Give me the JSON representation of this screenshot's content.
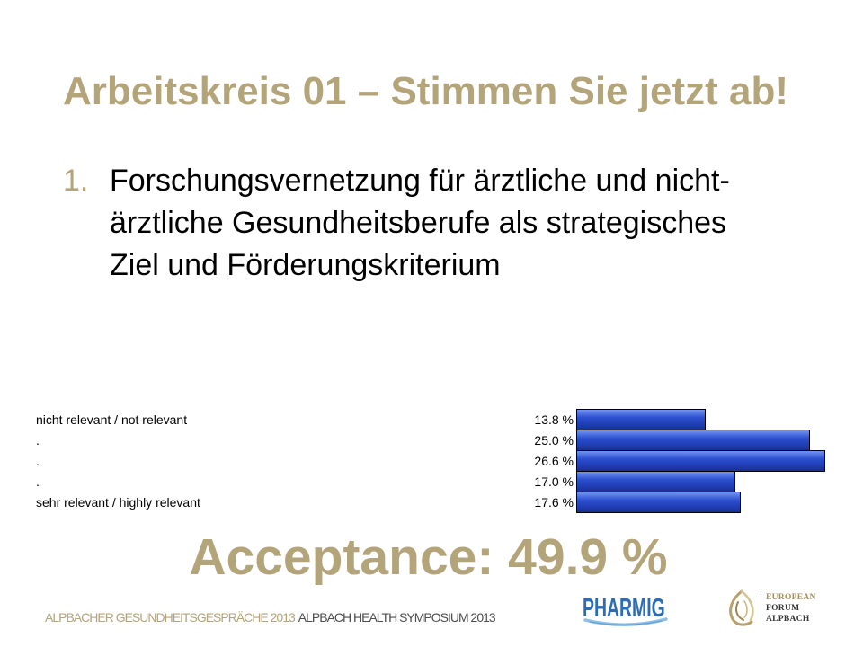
{
  "slide": {
    "title": "Arbeitskreis 01 – Stimmen Sie jetzt ab!",
    "question_number": "1.",
    "question_lines": [
      "Forschungsvernetzung für ärztliche und nicht-",
      "ärztliche Gesundheitsberufe als strategisches",
      "Ziel und Förderungskriterium"
    ],
    "acceptance": "Acceptance: 49.9 %"
  },
  "chart_data": {
    "type": "bar",
    "orientation": "horizontal",
    "categories": [
      "nicht relevant / not relevant",
      ".",
      ".",
      ".",
      "sehr relevant / highly relevant"
    ],
    "values": [
      13.8,
      25.0,
      26.6,
      17.0,
      17.6
    ],
    "value_labels": [
      "13.8 %",
      "25.0 %",
      "26.6 %",
      "17.0 %",
      "17.6 %"
    ],
    "grid": false,
    "legend": "none"
  },
  "footer": {
    "event_de": "ALPBACHER GESUNDHEITSGESPRÄCHE 2013",
    "event_en": "ALPBACH HEALTH SYMPOSIUM 2013"
  },
  "logos": {
    "pharmig": {
      "text": "PHARMIG",
      "icon": "pharmig-swoosh-icon"
    },
    "forum": {
      "lines": [
        "EUROPEAN",
        "FORUM",
        "ALPBACH"
      ],
      "icon": "forum-alpbach-emblem-icon"
    }
  },
  "theme": {
    "gold": "#b3a47a",
    "ink": "#000000",
    "bar": "#2c4fcf",
    "footer_gray": "#4d4d4d",
    "pharmig_blue": "#2b6cb4",
    "pharmig_swoosh": "#8fc0e8",
    "forum_gold": "#a48e5c"
  }
}
